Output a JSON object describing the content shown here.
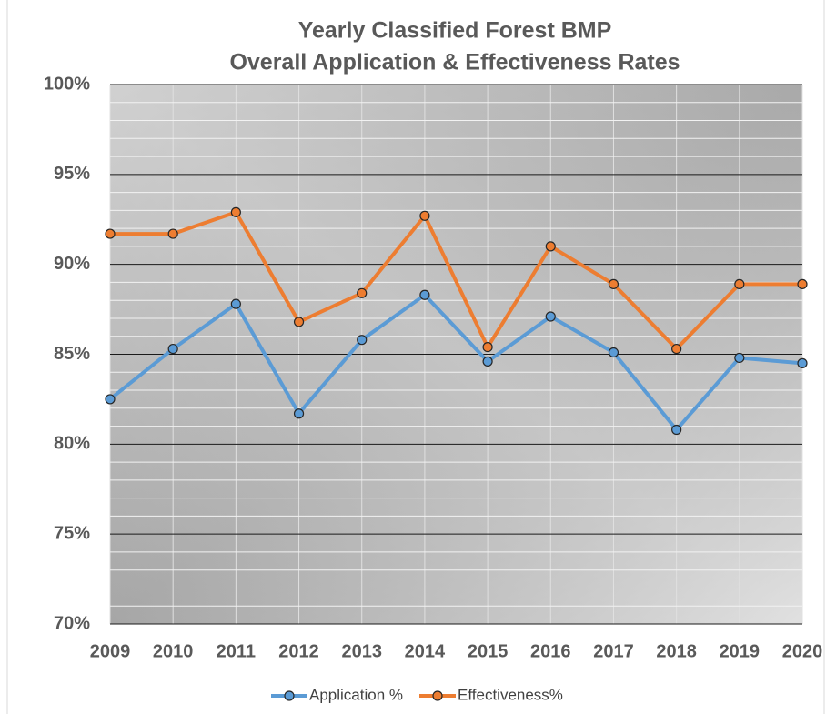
{
  "chart_data": {
    "type": "line",
    "title": [
      "Yearly Classified Forest BMP",
      "Overall Application & Effectiveness Rates"
    ],
    "categories": [
      "2009",
      "2010",
      "2011",
      "2012",
      "2013",
      "2014",
      "2015",
      "2016",
      "2017",
      "2018",
      "2019",
      "2020"
    ],
    "series": [
      {
        "name": "Application %",
        "color": "#5b9bd5",
        "values": [
          82.5,
          85.3,
          87.8,
          81.7,
          85.8,
          88.3,
          84.6,
          87.1,
          85.1,
          80.8,
          84.8,
          84.5
        ]
      },
      {
        "name": "Effectiveness%",
        "color": "#ed7d31",
        "values": [
          91.7,
          91.7,
          92.9,
          86.8,
          88.4,
          92.7,
          85.4,
          91.0,
          88.9,
          85.3,
          88.9,
          88.9
        ]
      }
    ],
    "ylim": [
      70,
      100
    ],
    "yticks": [
      {
        "value": 70,
        "label": "70%"
      },
      {
        "value": 75,
        "label": "75%"
      },
      {
        "value": 80,
        "label": "80%"
      },
      {
        "value": 85,
        "label": "85%"
      },
      {
        "value": 90,
        "label": "90%"
      },
      {
        "value": 95,
        "label": "95%"
      },
      {
        "value": 100,
        "label": "100%"
      }
    ],
    "minor_yticks": [
      71,
      72,
      73,
      74,
      76,
      77,
      78,
      79,
      81,
      82,
      83,
      84,
      86,
      87,
      88,
      89,
      91,
      92,
      93,
      94,
      96,
      97,
      98,
      99
    ],
    "grid": true,
    "legend": "bottom"
  }
}
